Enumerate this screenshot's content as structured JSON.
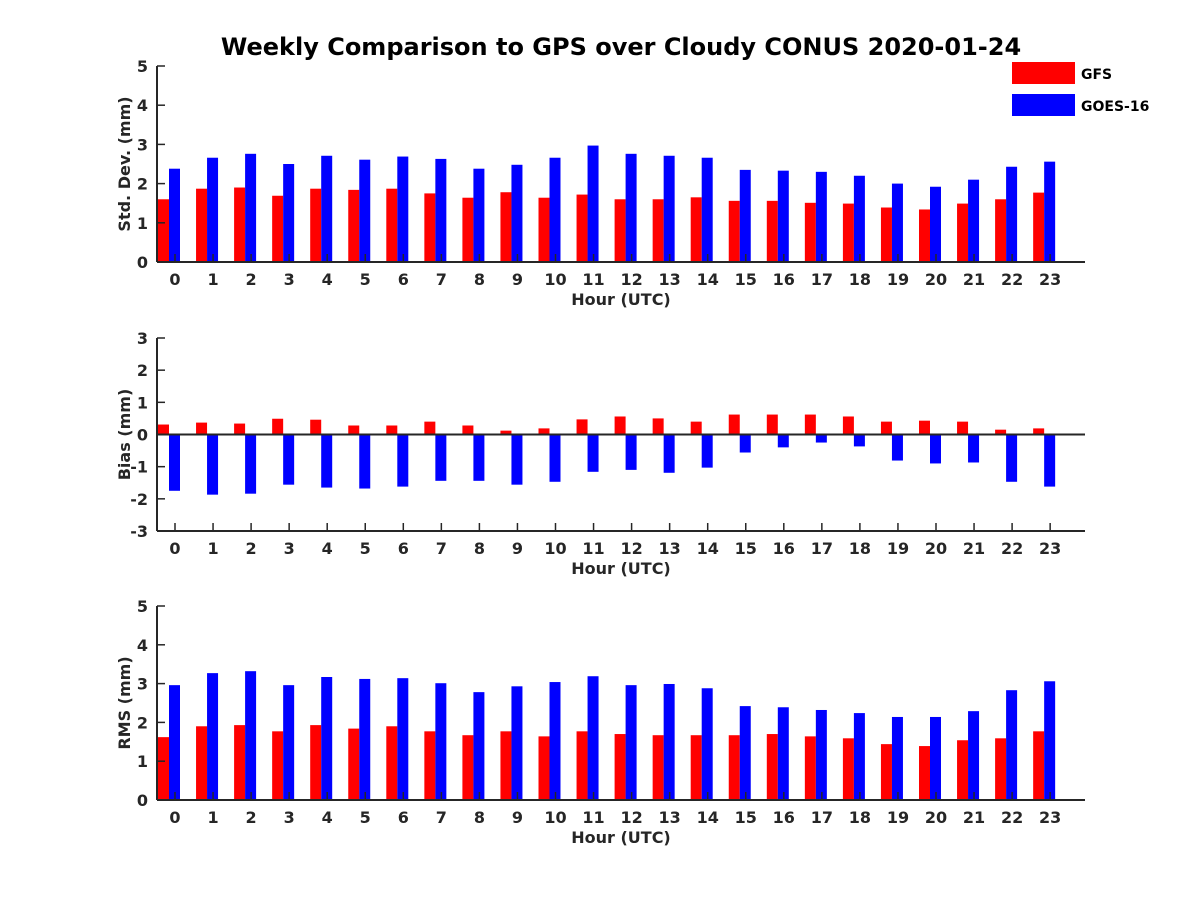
{
  "title": "Weekly Comparison to GPS over Cloudy CONUS 2020-01-24",
  "legend": [
    {
      "label": "GFS",
      "color": "#ff0000"
    },
    {
      "label": "GOES-16",
      "color": "#0000ff"
    }
  ],
  "chart_data": [
    {
      "type": "bar",
      "ylabel": "Std. Dev. (mm)",
      "xlabel": "Hour (UTC)",
      "categories": [
        "0",
        "1",
        "2",
        "3",
        "4",
        "5",
        "6",
        "7",
        "8",
        "9",
        "10",
        "11",
        "12",
        "13",
        "14",
        "15",
        "16",
        "17",
        "18",
        "19",
        "20",
        "21",
        "22",
        "23"
      ],
      "ylim": [
        0,
        5
      ],
      "yticks": [
        0,
        1,
        2,
        3,
        4,
        5
      ],
      "series": [
        {
          "name": "GFS",
          "color": "#ff0000",
          "values": [
            1.6,
            1.87,
            1.9,
            1.69,
            1.87,
            1.84,
            1.87,
            1.75,
            1.64,
            1.78,
            1.64,
            1.72,
            1.6,
            1.6,
            1.65,
            1.56,
            1.56,
            1.51,
            1.49,
            1.39,
            1.34,
            1.49,
            1.6,
            1.77
          ]
        },
        {
          "name": "GOES-16",
          "color": "#0000ff",
          "values": [
            2.38,
            2.66,
            2.76,
            2.5,
            2.71,
            2.61,
            2.69,
            2.63,
            2.38,
            2.48,
            2.66,
            2.97,
            2.76,
            2.71,
            2.66,
            2.35,
            2.33,
            2.3,
            2.2,
            2.0,
            1.92,
            2.1,
            2.43,
            2.56
          ]
        }
      ]
    },
    {
      "type": "bar",
      "ylabel": "Bias (mm)",
      "xlabel": "Hour (UTC)",
      "categories": [
        "0",
        "1",
        "2",
        "3",
        "4",
        "5",
        "6",
        "7",
        "8",
        "9",
        "10",
        "11",
        "12",
        "13",
        "14",
        "15",
        "16",
        "17",
        "18",
        "19",
        "20",
        "21",
        "22",
        "23"
      ],
      "ylim": [
        -3,
        3
      ],
      "yticks": [
        -3,
        -2,
        -1,
        0,
        1,
        2,
        3
      ],
      "series": [
        {
          "name": "GFS",
          "color": "#ff0000",
          "values": [
            0.31,
            0.37,
            0.34,
            0.49,
            0.46,
            0.28,
            0.28,
            0.4,
            0.28,
            0.12,
            0.19,
            0.47,
            0.56,
            0.5,
            0.4,
            0.62,
            0.62,
            0.62,
            0.56,
            0.4,
            0.43,
            0.4,
            0.15,
            0.19
          ]
        },
        {
          "name": "GOES-16",
          "color": "#0000ff",
          "values": [
            -1.75,
            -1.87,
            -1.84,
            -1.56,
            -1.65,
            -1.68,
            -1.62,
            -1.44,
            -1.44,
            -1.56,
            -1.47,
            -1.16,
            -1.1,
            -1.19,
            -1.03,
            -0.56,
            -0.4,
            -0.25,
            -0.37,
            -0.81,
            -0.9,
            -0.87,
            -1.47,
            -1.62
          ]
        }
      ]
    },
    {
      "type": "bar",
      "ylabel": "RMS (mm)",
      "xlabel": "Hour (UTC)",
      "categories": [
        "0",
        "1",
        "2",
        "3",
        "4",
        "5",
        "6",
        "7",
        "8",
        "9",
        "10",
        "11",
        "12",
        "13",
        "14",
        "15",
        "16",
        "17",
        "18",
        "19",
        "20",
        "21",
        "22",
        "23"
      ],
      "ylim": [
        0,
        5
      ],
      "yticks": [
        0,
        1,
        2,
        3,
        4,
        5
      ],
      "series": [
        {
          "name": "GFS",
          "color": "#ff0000",
          "values": [
            1.62,
            1.9,
            1.93,
            1.77,
            1.93,
            1.84,
            1.9,
            1.77,
            1.67,
            1.77,
            1.64,
            1.77,
            1.7,
            1.67,
            1.67,
            1.67,
            1.7,
            1.64,
            1.59,
            1.44,
            1.39,
            1.54,
            1.59,
            1.77
          ]
        },
        {
          "name": "GOES-16",
          "color": "#0000ff",
          "values": [
            2.96,
            3.27,
            3.32,
            2.96,
            3.17,
            3.12,
            3.14,
            3.01,
            2.78,
            2.93,
            3.04,
            3.19,
            2.96,
            2.99,
            2.88,
            2.42,
            2.39,
            2.32,
            2.24,
            2.14,
            2.14,
            2.29,
            2.83,
            3.06
          ]
        }
      ]
    }
  ]
}
